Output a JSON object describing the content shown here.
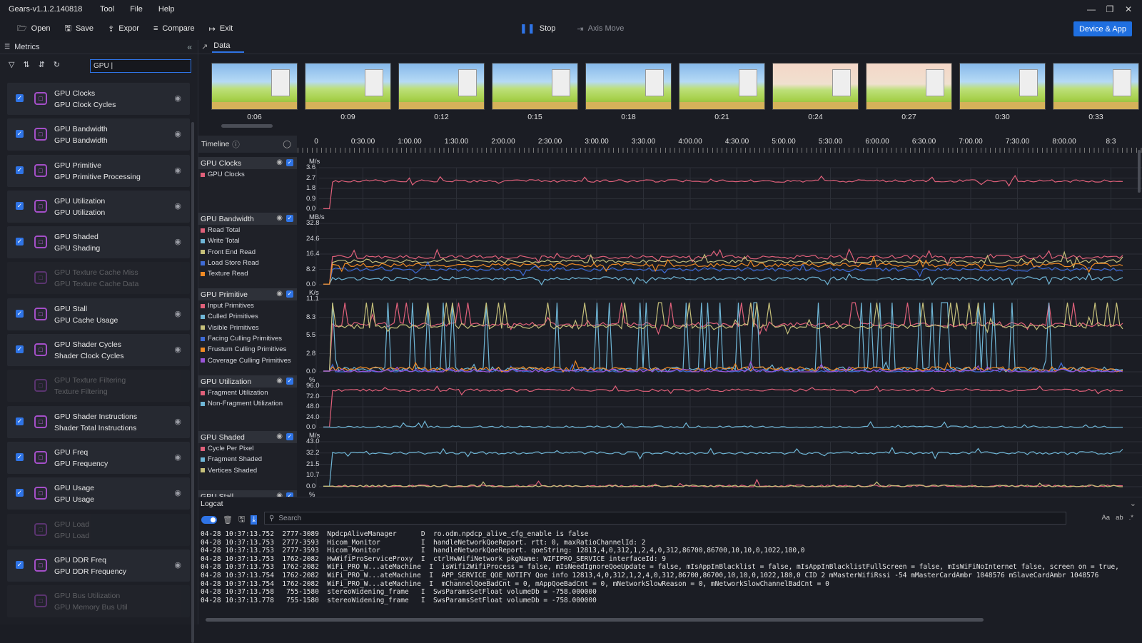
{
  "app": {
    "title": "Gears-v1.1.2.140818",
    "menu": [
      "Tool",
      "File",
      "Help"
    ]
  },
  "toolbar": {
    "open": "Open",
    "save": "Save",
    "export": "Expor",
    "compare": "Compare",
    "exit": "Exit",
    "stop": "Stop",
    "axis_move": "Axis Move",
    "device_app": "Device & App"
  },
  "sidebar": {
    "title": "Metrics",
    "search_value": "GPU |",
    "metrics": [
      {
        "t1": "GPU Clocks",
        "t2": "GPU Clock Cycles",
        "checked": true
      },
      {
        "t1": "GPU Bandwidth",
        "t2": "GPU Bandwidth",
        "checked": true
      },
      {
        "t1": "GPU Primitive",
        "t2": "GPU Primitive Processing",
        "checked": true
      },
      {
        "t1": "GPU Utilization",
        "t2": "GPU Utilization",
        "checked": true
      },
      {
        "t1": "GPU Shaded",
        "t2": "GPU Shading",
        "checked": true
      },
      {
        "t1": "GPU Texture Cache Miss",
        "t2": "GPU Texture Cache Data",
        "checked": false
      },
      {
        "t1": "GPU Stall",
        "t2": "GPU Cache Usage",
        "checked": true
      },
      {
        "t1": "GPU Shader Cycles",
        "t2": "Shader Clock Cycles",
        "checked": true
      },
      {
        "t1": "GPU Texture Filtering",
        "t2": "Texture Filtering",
        "checked": false
      },
      {
        "t1": "GPU Shader Instructions",
        "t2": "Shader Total Instructions",
        "checked": true
      },
      {
        "t1": "GPU Freq",
        "t2": "GPU Frequency",
        "checked": true
      },
      {
        "t1": "GPU Usage",
        "t2": "GPU Usage",
        "checked": true
      },
      {
        "t1": "GPU Load",
        "t2": "GPU Load",
        "checked": false
      },
      {
        "t1": "GPU DDR Freq",
        "t2": "GPU DDR Frequency",
        "checked": true
      },
      {
        "t1": "GPU Bus Utilization",
        "t2": "GPU Memory Bus Util",
        "checked": false
      }
    ]
  },
  "data_tab": {
    "label": "Data"
  },
  "thumbnails": [
    "0:06",
    "0:09",
    "0:12",
    "0:15",
    "0:18",
    "0:21",
    "0:24",
    "0:27",
    "0:30",
    "0:33"
  ],
  "timeline": {
    "label": "Timeline",
    "ticks": [
      "0",
      "0:30.00",
      "1:00.00",
      "1:30.00",
      "2:00.00",
      "2:30.00",
      "3:00.00",
      "3:30.00",
      "4:00.00",
      "4:30.00",
      "5:00.00",
      "5:30.00",
      "6:00.00",
      "6:30.00",
      "7:00.00",
      "7:30.00",
      "8:00.00",
      "8:3"
    ]
  },
  "charts": [
    {
      "title": "GPU Clocks",
      "unit": "M/s",
      "yticks": [
        "3.6",
        "2.7",
        "1.8",
        "0.9",
        "0.0"
      ],
      "series": [
        {
          "name": "GPU Clocks",
          "color": "#e0607a"
        }
      ]
    },
    {
      "title": "GPU Bandwidth",
      "unit": "MB/s",
      "yticks": [
        "32.8",
        "24.6",
        "16.4",
        "8.2",
        "0.0"
      ],
      "series": [
        {
          "name": "Read Total",
          "color": "#e0607a"
        },
        {
          "name": "Write Total",
          "color": "#6fb6d6"
        },
        {
          "name": "Front End Read",
          "color": "#c6c07a"
        },
        {
          "name": "Load Store Read",
          "color": "#3e6bd6"
        },
        {
          "name": "Texture Read",
          "color": "#f08a24"
        }
      ]
    },
    {
      "title": "GPU Primitive",
      "unit": "K/s",
      "yticks": [
        "11.1",
        "8.3",
        "5.5",
        "2.8",
        "0.0"
      ],
      "series": [
        {
          "name": "Input Primitives",
          "color": "#e0607a"
        },
        {
          "name": "Culled Primitives",
          "color": "#6fb6d6"
        },
        {
          "name": "Visible Primitives",
          "color": "#c6c07a"
        },
        {
          "name": "Facing Culling Primitives",
          "color": "#3e6bd6"
        },
        {
          "name": "Frustum Culling Primitives",
          "color": "#f08a24"
        },
        {
          "name": "Coverage Culling Primitives",
          "color": "#9a55d8"
        }
      ]
    },
    {
      "title": "GPU Utilization",
      "unit": "%",
      "yticks": [
        "96.0",
        "72.0",
        "48.0",
        "24.0",
        "0.0"
      ],
      "series": [
        {
          "name": "Fragment Utilization",
          "color": "#e0607a"
        },
        {
          "name": "Non-Fragment Utilization",
          "color": "#6fb6d6"
        }
      ]
    },
    {
      "title": "GPU Shaded",
      "unit": "M/s",
      "yticks": [
        "43.0",
        "32.2",
        "21.5",
        "10.7",
        "0.0"
      ],
      "series": [
        {
          "name": "Cycle Per Pixel",
          "color": "#e0607a"
        },
        {
          "name": "Fragment Shaded",
          "color": "#6fb6d6"
        },
        {
          "name": "Vertices Shaded",
          "color": "#c6c07a"
        }
      ]
    },
    {
      "title": "GPU Stall",
      "unit": "%",
      "yticks": [],
      "series": []
    }
  ],
  "logcat": {
    "title": "Logcat",
    "search_placeholder": "Search",
    "right_tools": [
      "Aa",
      "ab",
      ".*"
    ],
    "lines": [
      "04-28 10:37:13.752  2777-3089  NpdcpAliveManager      D  ro.odm.npdcp_alive_cfg_enable is false",
      "04-28 10:37:13.753  2777-3593  Hicom_Monitor          I  handleNetworkQoeReport. rtt: 0, maxRatioChannelId: 2",
      "04-28 10:37:13.753  2777-3593  Hicom_Monitor          I  handleNetworkQoeReport. qoeString: 12813,4,0,312,1,2,4,0,312,86700,86700,10,10,0,1022,180,0",
      "04-28 10:37:13.753  1762-2082  HwWifiProServiceProxy  I  ctrlHwWifiNetwork pkgName: WIFIPRO_SERVICE interfaceId: 9",
      "04-28 10:37:13.753  1762-2082  WiFi_PRO_W...ateMachine  I  isWifi2WifiProcess = false, mIsNeedIgnoreQoeUpdate = false, mIsAppInBlacklist = false, mIsAppInBlacklistFullScreen = false, mIsWiFiNoInternet false, screen on = true, full screen = true, isLandscapeMo",
      "04-28 10:37:13.754  1762-2082  WiFi_PRO_W...ateMachine  I  APP_SERVICE_QOE_NOTIFY Qoe info 12813,4,0,312,1,2,4,0,312,86700,86700,10,10,0,1022,180,0 CID 2 mMasterWifiRssi -54 mMasterCardAmbr 1048576 mSlaveCardAmbr 1048576",
      "04-28 10:37:13.754  1762-2082  WiFi_PRO_W...ateMachine  I  mChannelQoeBadCnt = 0, mAppQoeBadCnt = 0, mNetworkSlowReason = 0, mNetworkSlowChannelBadCnt = 0",
      "04-28 10:37:13.758   755-1580  stereoWidening_frame   I  SwsParamsSetFloat volumeDb = -758.000000",
      "04-28 10:37:13.778   755-1580  stereoWidening_frame   I  SwsParamsSetFloat volumeDb = -758.000000"
    ]
  }
}
